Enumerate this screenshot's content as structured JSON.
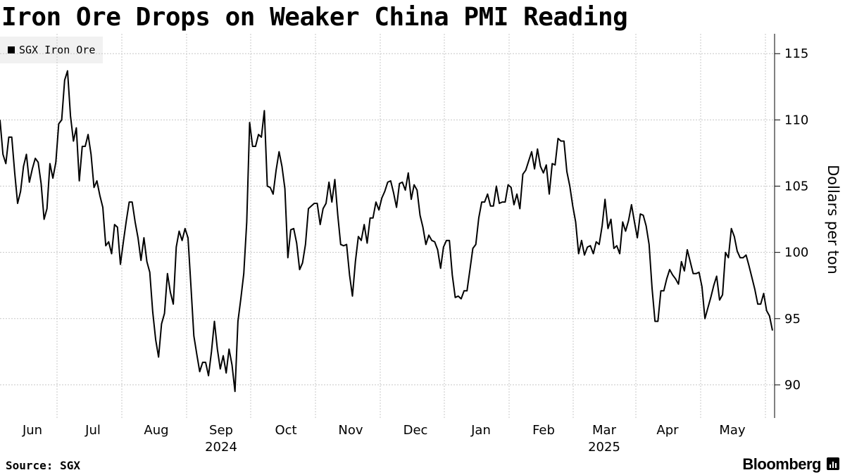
{
  "title": "Iron Ore Drops on Weaker China PMI Reading",
  "source": "Source: SGX",
  "brand": "Bloomberg",
  "brand_icon": "bloomberg-terminal-icon",
  "colors": {
    "line": "#000000",
    "grid": "#c8c8c8",
    "legend_bg": "#f1f1f1"
  },
  "chart_data": {
    "type": "line",
    "title": "Iron Ore Drops on Weaker China PMI Reading",
    "xlabel": "",
    "ylabel": "Dollars per ton",
    "ylim": [
      87.5,
      116.5
    ],
    "yticks": [
      90,
      95,
      100,
      105,
      110,
      115
    ],
    "legend": "top-left",
    "grid": true,
    "x_tick_labels": [
      "Jun",
      "Jul",
      "Aug",
      "Sep",
      "Oct",
      "Nov",
      "Dec",
      "Jan",
      "Feb",
      "Mar",
      "Apr",
      "May"
    ],
    "year_labels": [
      {
        "label": "2024",
        "under": "Sep"
      },
      {
        "label": "2025",
        "under": "Mar"
      }
    ],
    "series": [
      {
        "name": "SGX Iron Ore",
        "values": [
          110.0,
          107.4,
          106.7,
          108.7,
          108.7,
          106.0,
          103.7,
          104.6,
          106.5,
          107.4,
          105.3,
          106.3,
          107.1,
          106.8,
          105.2,
          102.5,
          103.3,
          106.7,
          105.6,
          106.8,
          109.7,
          110.0,
          113.0,
          113.7,
          110.3,
          108.4,
          109.4,
          105.4,
          108.0,
          108.0,
          108.9,
          107.4,
          104.9,
          105.4,
          104.3,
          103.4,
          100.5,
          100.8,
          99.9,
          102.1,
          101.9,
          99.1,
          100.8,
          102.4,
          103.8,
          103.8,
          102.3,
          101.1,
          99.4,
          101.1,
          99.3,
          98.5,
          95.5,
          93.4,
          92.1,
          94.6,
          95.4,
          98.4,
          97.0,
          96.1,
          100.4,
          101.6,
          100.9,
          101.8,
          101.1,
          97.5,
          93.7,
          92.3,
          91.0,
          91.7,
          91.7,
          90.7,
          92.5,
          94.8,
          92.7,
          91.2,
          92.2,
          90.9,
          92.7,
          91.5,
          89.5,
          94.8,
          96.5,
          98.4,
          102.3,
          109.8,
          108.0,
          108.0,
          108.9,
          108.7,
          110.7,
          105.0,
          104.9,
          104.4,
          106.2,
          107.6,
          106.5,
          104.8,
          99.6,
          101.7,
          101.8,
          100.7,
          98.7,
          99.2,
          100.6,
          103.3,
          103.5,
          103.7,
          103.7,
          102.1,
          103.3,
          103.7,
          105.3,
          103.8,
          105.5,
          102.8,
          100.6,
          100.5,
          100.6,
          98.3,
          96.7,
          99.3,
          101.2,
          100.9,
          102.1,
          100.7,
          102.6,
          102.6,
          103.8,
          103.2,
          104.1,
          104.6,
          105.3,
          105.4,
          104.5,
          103.4,
          105.2,
          105.3,
          104.7,
          106.0,
          104.0,
          105.1,
          104.7,
          102.8,
          101.9,
          100.6,
          101.3,
          100.9,
          100.8,
          100.2,
          98.8,
          100.4,
          100.9,
          100.9,
          98.3,
          96.6,
          96.7,
          96.5,
          97.1,
          97.1,
          98.7,
          100.3,
          100.6,
          102.6,
          103.8,
          103.8,
          104.4,
          103.5,
          103.5,
          105.0,
          103.7,
          103.8,
          103.8,
          105.1,
          104.9,
          103.6,
          104.4,
          103.3,
          105.9,
          106.2,
          106.9,
          107.6,
          106.3,
          107.8,
          106.5,
          106.0,
          106.6,
          104.4,
          106.7,
          106.6,
          108.6,
          108.4,
          108.4,
          106.1,
          105.0,
          103.5,
          102.3,
          99.9,
          100.9,
          99.8,
          100.4,
          100.5,
          99.9,
          100.8,
          100.6,
          102.0,
          104.0,
          101.8,
          102.5,
          100.3,
          100.5,
          99.9,
          102.3,
          101.6,
          102.4,
          103.6,
          102.3,
          101.1,
          102.9,
          102.8,
          102.0,
          100.6,
          97.3,
          94.8,
          94.8,
          97.1,
          97.1,
          98.0,
          98.7,
          98.3,
          98.0,
          97.6,
          99.3,
          98.6,
          100.2,
          99.3,
          98.4,
          98.4,
          98.5,
          97.4,
          95.0,
          95.8,
          96.6,
          97.5,
          98.2,
          96.4,
          96.8,
          100.0,
          99.6,
          101.8,
          101.2,
          100.1,
          99.6,
          99.6,
          99.8,
          99.0,
          98.1,
          97.2,
          96.1,
          96.1,
          96.9,
          95.6,
          95.2,
          94.1
        ]
      }
    ]
  }
}
